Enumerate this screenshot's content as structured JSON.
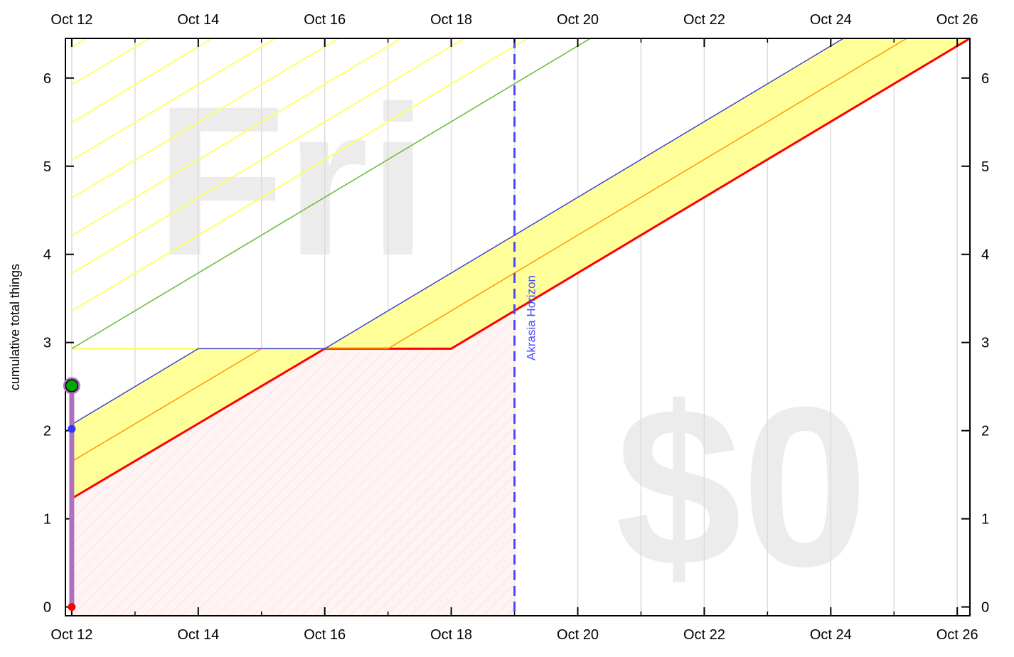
{
  "chart_data": {
    "type": "line",
    "title": "",
    "ylabel": "cumulative total things",
    "xlabel": "",
    "x_range": [
      "2024-10-11.9",
      "2024-10-26.2"
    ],
    "ylim": [
      -0.1,
      6.45
    ],
    "x_ticks": [
      {
        "date": "2024-10-12",
        "label": "Oct 12"
      },
      {
        "date": "2024-10-14",
        "label": "Oct 14"
      },
      {
        "date": "2024-10-16",
        "label": "Oct 16"
      },
      {
        "date": "2024-10-18",
        "label": "Oct 18"
      },
      {
        "date": "2024-10-20",
        "label": "Oct 20"
      },
      {
        "date": "2024-10-22",
        "label": "Oct 22"
      },
      {
        "date": "2024-10-24",
        "label": "Oct 24"
      },
      {
        "date": "2024-10-26",
        "label": "Oct 26"
      }
    ],
    "y_ticks": [
      "0",
      "1",
      "2",
      "3",
      "4",
      "5",
      "6"
    ],
    "grid": "vertical",
    "watermark_day": "Fri",
    "watermark_amount": "$0",
    "akrasia_horizon": {
      "date": "2024-10-19",
      "label": "Akrasia Horizon",
      "color": "#4a4aff"
    },
    "lines": [
      {
        "color": "#ff0000",
        "points": [
          [
            "2024-10-12",
            1.23
          ],
          [
            "2024-10-16",
            2.93
          ],
          [
            "2024-10-18",
            2.93
          ],
          [
            "2024-10-26.2",
            6.45
          ]
        ]
      },
      {
        "color": "#ff9900",
        "points": [
          [
            "2024-10-12",
            1.65
          ],
          [
            "2024-10-15",
            2.93
          ],
          [
            "2024-10-17",
            2.93
          ],
          [
            "2024-10-25.2",
            6.45
          ]
        ]
      },
      {
        "color": "#4444cc",
        "points": [
          [
            "2024-10-12",
            2.07
          ],
          [
            "2024-10-14",
            2.93
          ],
          [
            "2024-10-16",
            2.93
          ],
          [
            "2024-10-24.2",
            6.45
          ]
        ]
      },
      {
        "color": "#66bb33",
        "points": [
          [
            "2024-10-12",
            2.93
          ],
          [
            "2024-10-20.2",
            6.45
          ]
        ]
      }
    ],
    "datapoints": [
      {
        "date": "2024-10-12",
        "value": 0,
        "color": "#ff0000"
      },
      {
        "date": "2024-10-12",
        "value": 2.02,
        "color": "#3333ff"
      },
      {
        "date": "2024-10-12",
        "value": 2.51,
        "color": "#00aa00"
      }
    ],
    "colors": {
      "good_band": "#ffff99",
      "hatch_good": "#ffff66",
      "bad_region": "#fff3f3",
      "hatch_bad": "#f0d8d8",
      "vertical_bar": "#b070c0"
    }
  }
}
